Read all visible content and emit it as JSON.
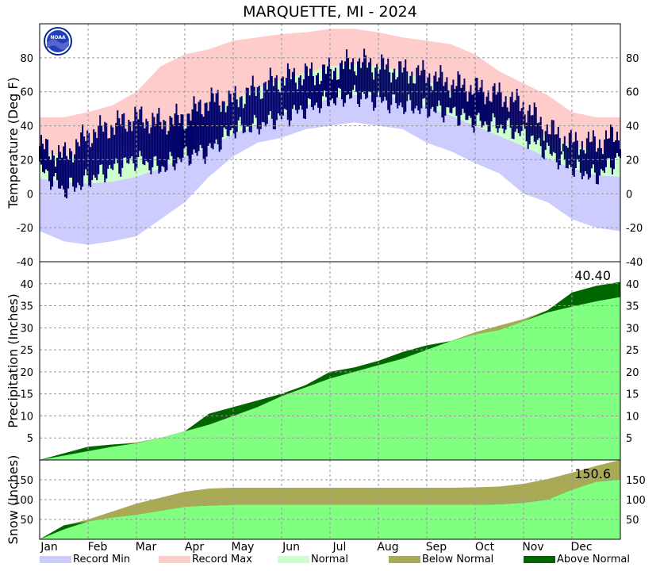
{
  "title": "MARQUETTE, MI - 2024",
  "logo_text": "NOAA",
  "colors": {
    "record_min": "#ccccff",
    "record_max": "#ffcccc",
    "normal_band": "#ccffcc",
    "observed_temp": "#000066",
    "normal_precip": "#80ff80",
    "below_normal": "#aaaa55",
    "above_normal": "#006600",
    "grid": "#999999"
  },
  "months": [
    "Jan",
    "Feb",
    "Mar",
    "Apr",
    "May",
    "Jun",
    "Jul",
    "Aug",
    "Sep",
    "Oct",
    "Nov",
    "Dec"
  ],
  "legend": [
    {
      "label": "Record Min",
      "color": "#ccccff"
    },
    {
      "label": "Record Max",
      "color": "#ffcccc"
    },
    {
      "label": "Normal",
      "color": "#ccffcc"
    },
    {
      "label": "Below Normal",
      "color": "#aaaa55"
    },
    {
      "label": "Above Normal",
      "color": "#006600"
    }
  ],
  "chart_data": [
    {
      "type": "area",
      "panel": "temperature",
      "ylabel": "Temperature (Deg F)",
      "ylim": [
        -40,
        100
      ],
      "yticks": [
        -40,
        -20,
        0,
        20,
        40,
        60,
        80
      ],
      "grid": true,
      "x": [
        "Jan 1",
        "Jan 15",
        "Feb 1",
        "Feb 15",
        "Mar 1",
        "Mar 15",
        "Apr 1",
        "Apr 15",
        "May 1",
        "May 15",
        "Jun 1",
        "Jun 15",
        "Jul 1",
        "Jul 15",
        "Aug 1",
        "Aug 15",
        "Sep 1",
        "Sep 15",
        "Oct 1",
        "Oct 15",
        "Nov 1",
        "Nov 15",
        "Dec 1",
        "Dec 15",
        "Dec 31"
      ],
      "series": [
        {
          "name": "Record Min",
          "values": [
            -22,
            -28,
            -30,
            -28,
            -25,
            -15,
            -5,
            10,
            22,
            30,
            33,
            38,
            40,
            42,
            40,
            38,
            30,
            25,
            18,
            12,
            0,
            -5,
            -15,
            -20,
            -22
          ]
        },
        {
          "name": "Record Max",
          "values": [
            45,
            45,
            48,
            52,
            60,
            75,
            82,
            85,
            90,
            92,
            94,
            95,
            97,
            97,
            95,
            92,
            90,
            88,
            82,
            72,
            65,
            58,
            48,
            45,
            45
          ]
        },
        {
          "name": "Normal",
          "values": [
            [
              9,
              24
            ],
            [
              7,
              22
            ],
            [
              6,
              24
            ],
            [
              7,
              26
            ],
            [
              10,
              30
            ],
            [
              15,
              34
            ],
            [
              22,
              40
            ],
            [
              28,
              47
            ],
            [
              35,
              55
            ],
            [
              41,
              62
            ],
            [
              47,
              67
            ],
            [
              52,
              71
            ],
            [
              56,
              75
            ],
            [
              58,
              76
            ],
            [
              58,
              75
            ],
            [
              56,
              72
            ],
            [
              51,
              66
            ],
            [
              46,
              60
            ],
            [
              40,
              53
            ],
            [
              34,
              46
            ],
            [
              28,
              40
            ],
            [
              21,
              33
            ],
            [
              15,
              28
            ],
            [
              11,
              25
            ],
            [
              10,
              24
            ]
          ]
        },
        {
          "name": "Observed",
          "values": [
            [
              15,
              28
            ],
            [
              2,
              22
            ],
            [
              8,
              35
            ],
            [
              15,
              40
            ],
            [
              20,
              45
            ],
            [
              15,
              42
            ],
            [
              22,
              45
            ],
            [
              25,
              55
            ],
            [
              38,
              55
            ],
            [
              40,
              62
            ],
            [
              45,
              68
            ],
            [
              50,
              70
            ],
            [
              55,
              72
            ],
            [
              58,
              78
            ],
            [
              55,
              75
            ],
            [
              52,
              72
            ],
            [
              50,
              70
            ],
            [
              48,
              65
            ],
            [
              42,
              62
            ],
            [
              40,
              58
            ],
            [
              35,
              52
            ],
            [
              25,
              38
            ],
            [
              15,
              30
            ],
            [
              10,
              30
            ],
            [
              22,
              35
            ]
          ]
        }
      ]
    },
    {
      "type": "area",
      "panel": "precipitation",
      "ylabel": "Precipitation (Inches)",
      "ylim": [
        0,
        45
      ],
      "yticks": [
        5,
        10,
        15,
        20,
        25,
        30,
        35,
        40
      ],
      "grid": true,
      "total_label": "40.40",
      "x": [
        "Jan 1",
        "Jan 15",
        "Feb 1",
        "Feb 15",
        "Mar 1",
        "Mar 15",
        "Apr 1",
        "Apr 15",
        "May 1",
        "May 15",
        "Jun 1",
        "Jun 15",
        "Jul 1",
        "Jul 15",
        "Aug 1",
        "Aug 15",
        "Sep 1",
        "Sep 15",
        "Oct 1",
        "Oct 15",
        "Nov 1",
        "Nov 15",
        "Dec 1",
        "Dec 15",
        "Dec 31"
      ],
      "series": [
        {
          "name": "Normal",
          "values": [
            0,
            1.0,
            2.0,
            3.0,
            4.0,
            5.0,
            6.5,
            8.0,
            10.0,
            12.0,
            14.5,
            16.5,
            18.5,
            20.0,
            21.5,
            23.0,
            25.0,
            27.0,
            29.0,
            30.5,
            32.0,
            33.5,
            34.8,
            36.0,
            37.0
          ]
        },
        {
          "name": "Observed",
          "values": [
            0,
            1.5,
            3.0,
            3.5,
            3.8,
            5.0,
            6.5,
            10.5,
            12.0,
            13.5,
            15.0,
            17.0,
            20.0,
            21.0,
            22.5,
            24.5,
            26.0,
            27.0,
            28.5,
            29.5,
            31.5,
            34.0,
            38.0,
            39.5,
            40.4
          ]
        }
      ]
    },
    {
      "type": "area",
      "panel": "snow",
      "ylabel": "Snow (Inches)",
      "ylim": [
        0,
        200
      ],
      "yticks": [
        50,
        100,
        150
      ],
      "grid": true,
      "total_label": "150.6",
      "x": [
        "Jan 1",
        "Jan 15",
        "Feb 1",
        "Feb 15",
        "Mar 1",
        "Mar 15",
        "Apr 1",
        "Apr 15",
        "May 1",
        "May 15",
        "Jun 1",
        "Jun 15",
        "Jul 1",
        "Jul 15",
        "Aug 1",
        "Aug 15",
        "Sep 1",
        "Sep 15",
        "Oct 1",
        "Oct 15",
        "Nov 1",
        "Nov 15",
        "Dec 1",
        "Dec 15",
        "Dec 31"
      ],
      "series": [
        {
          "name": "Normal",
          "values": [
            0,
            25,
            50,
            70,
            90,
            105,
            120,
            128,
            130,
            130,
            130,
            130,
            130,
            130,
            130,
            130,
            130,
            130,
            131,
            133,
            140,
            152,
            168,
            185,
            200
          ]
        },
        {
          "name": "Observed",
          "values": [
            0,
            35,
            45,
            55,
            62,
            72,
            82,
            85,
            87,
            87,
            87,
            87,
            87,
            87,
            87,
            87,
            87,
            87,
            87,
            88,
            92,
            100,
            125,
            145,
            150.6
          ]
        }
      ]
    }
  ]
}
